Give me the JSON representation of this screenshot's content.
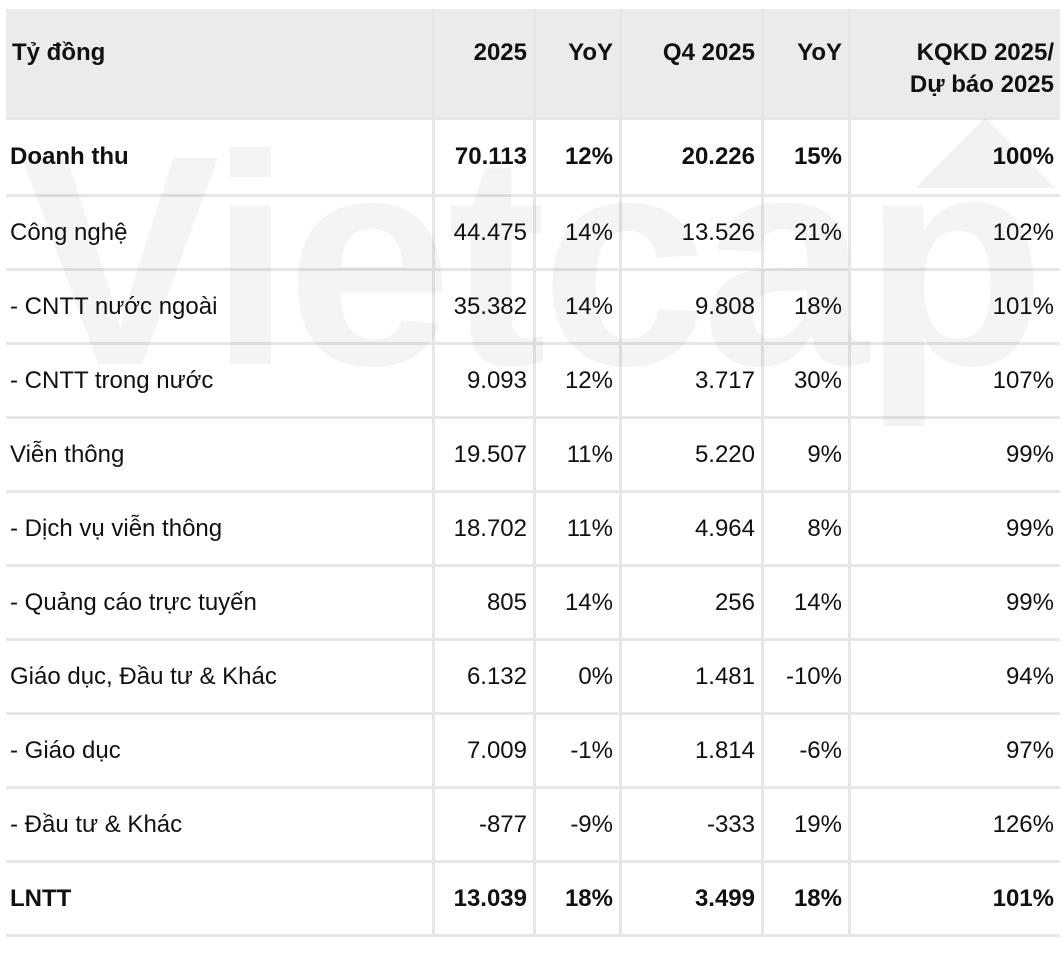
{
  "watermark": "Vietcap",
  "table": {
    "headers": [
      "Tỷ đồng",
      "2025",
      "YoY",
      "Q4 2025",
      "YoY",
      "KQKD 2025/\nDự báo 2025"
    ],
    "header_last_line1": "KQKD 2025/",
    "header_last_line2": "Dự báo 2025",
    "rows": [
      {
        "label": "Doanh thu",
        "v2025": "70.113",
        "yoy1": "12%",
        "q4": "20.226",
        "yoy2": "15%",
        "kqkd": "100%",
        "bold": true
      },
      {
        "label": "Công nghệ",
        "v2025": "44.475",
        "yoy1": "14%",
        "q4": "13.526",
        "yoy2": "21%",
        "kqkd": "102%",
        "bold": false
      },
      {
        "label": " - CNTT nước ngoài",
        "v2025": "35.382",
        "yoy1": "14%",
        "q4": "9.808",
        "yoy2": "18%",
        "kqkd": "101%",
        "bold": false
      },
      {
        "label": " - CNTT trong nước",
        "v2025": "9.093",
        "yoy1": "12%",
        "q4": "3.717",
        "yoy2": "30%",
        "kqkd": "107%",
        "bold": false
      },
      {
        "label": "Viễn thông",
        "v2025": "19.507",
        "yoy1": "11%",
        "q4": "5.220",
        "yoy2": "9%",
        "kqkd": "99%",
        "bold": false
      },
      {
        "label": " - Dịch vụ viễn thông",
        "v2025": "18.702",
        "yoy1": "11%",
        "q4": "4.964",
        "yoy2": "8%",
        "kqkd": "99%",
        "bold": false
      },
      {
        "label": " - Quảng cáo trực tuyến",
        "v2025": "805",
        "yoy1": "14%",
        "q4": "256",
        "yoy2": "14%",
        "kqkd": "99%",
        "bold": false
      },
      {
        "label": "Giáo dục, Đầu tư & Khác",
        "v2025": "6.132",
        "yoy1": "0%",
        "q4": "1.481",
        "yoy2": "-10%",
        "kqkd": "94%",
        "bold": false
      },
      {
        "label": " - Giáo dục",
        "v2025": "7.009",
        "yoy1": "-1%",
        "q4": "1.814",
        "yoy2": "-6%",
        "kqkd": "97%",
        "bold": false
      },
      {
        "label": " - Đầu tư & Khác",
        "v2025": "-877",
        "yoy1": "-9%",
        "q4": "-333",
        "yoy2": "19%",
        "kqkd": "126%",
        "bold": false
      },
      {
        "label": "LNTT",
        "v2025": "13.039",
        "yoy1": "18%",
        "q4": "3.499",
        "yoy2": "18%",
        "kqkd": "101%",
        "bold": true
      }
    ]
  }
}
